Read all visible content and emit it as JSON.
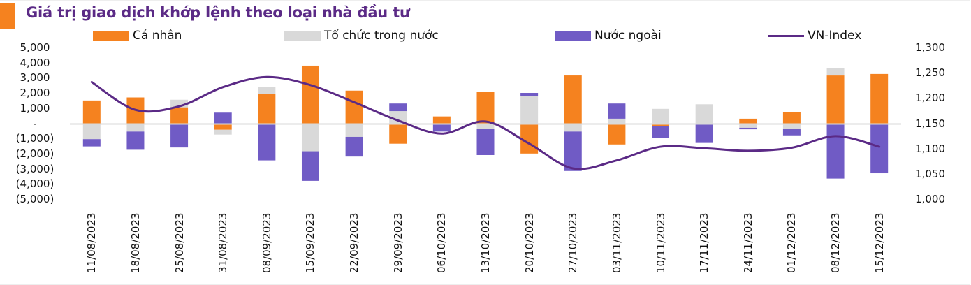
{
  "header": {
    "title": "Giá trị giao dịch khớp lệnh theo loại nhà đầu tư"
  },
  "legend": {
    "items": [
      {
        "label": "Cá nhân",
        "type": "bar",
        "color": "#f5821f"
      },
      {
        "label": "Tổ chức trong nước",
        "type": "bar",
        "color": "#d9d9d9"
      },
      {
        "label": "Nước ngoài",
        "type": "bar",
        "color": "#705bc5"
      },
      {
        "label": "VN-Index",
        "type": "line",
        "color": "#5b2a86"
      }
    ]
  },
  "axes": {
    "left_ticks": [
      "5,000",
      "4,000",
      "3,000",
      "2,000",
      "1,000",
      "-",
      "(1,000)",
      "(2,000)",
      "(3,000)",
      "(4,000)",
      "(5,000)"
    ],
    "right_ticks": [
      "1,300",
      "1,250",
      "1,200",
      "1,150",
      "1,100",
      "1,050",
      "1,000"
    ]
  },
  "chart_data": {
    "type": "bar",
    "subtype": "stacked bar + line (dual axis)",
    "title": "Giá trị giao dịch khớp lệnh theo loại nhà đầu tư",
    "xlabel": "",
    "ylabel": "",
    "ylim": [
      -5000,
      5000
    ],
    "y2lim": [
      1000,
      1300
    ],
    "grid": false,
    "legend_position": "top",
    "categories": [
      "11/08/2023",
      "18/08/2023",
      "25/08/2023",
      "31/08/2023",
      "08/09/2023",
      "15/09/2023",
      "22/09/2023",
      "29/09/2023",
      "06/10/2023",
      "13/10/2023",
      "20/10/2023",
      "27/10/2023",
      "03/11/2023",
      "10/11/2023",
      "17/11/2023",
      "24/11/2023",
      "01/12/2023",
      "08/12/2023",
      "15/12/2023"
    ],
    "series": [
      {
        "name": "Cá nhân",
        "type": "bar",
        "axis": "left",
        "color": "#f5821f",
        "values": [
          1550,
          1750,
          1100,
          -380,
          2000,
          3850,
          2200,
          -1300,
          500,
          2100,
          -1950,
          3200,
          -1350,
          -150,
          0,
          350,
          800,
          3200,
          3300
        ]
      },
      {
        "name": "Tổ chức trong nước",
        "type": "bar",
        "axis": "left",
        "color": "#d9d9d9",
        "values": [
          -1000,
          -500,
          500,
          -320,
          450,
          -1800,
          -850,
          850,
          0,
          -300,
          1850,
          -500,
          350,
          1000,
          1300,
          -250,
          -300,
          500,
          0
        ]
      },
      {
        "name": "Nước ngoài",
        "type": "bar",
        "axis": "left",
        "color": "#705bc5",
        "values": [
          -480,
          -1200,
          -1550,
          750,
          -2400,
          -1950,
          -1300,
          500,
          -500,
          -1750,
          200,
          -2600,
          1000,
          -780,
          -1250,
          -100,
          -450,
          -3600,
          -3250
        ]
      },
      {
        "name": "VN-Index",
        "type": "line",
        "axis": "right",
        "color": "#5b2a86",
        "values": [
          1233,
          1178,
          1185,
          1223,
          1243,
          1227,
          1193,
          1157,
          1131,
          1155,
          1111,
          1062,
          1078,
          1105,
          1102,
          1097,
          1103,
          1126,
          1105
        ]
      }
    ],
    "left_ticks": [
      5000,
      4000,
      3000,
      2000,
      1000,
      0,
      -1000,
      -2000,
      -3000,
      -4000,
      -5000
    ],
    "right_ticks": [
      1300,
      1250,
      1200,
      1150,
      1100,
      1050,
      1000
    ]
  }
}
